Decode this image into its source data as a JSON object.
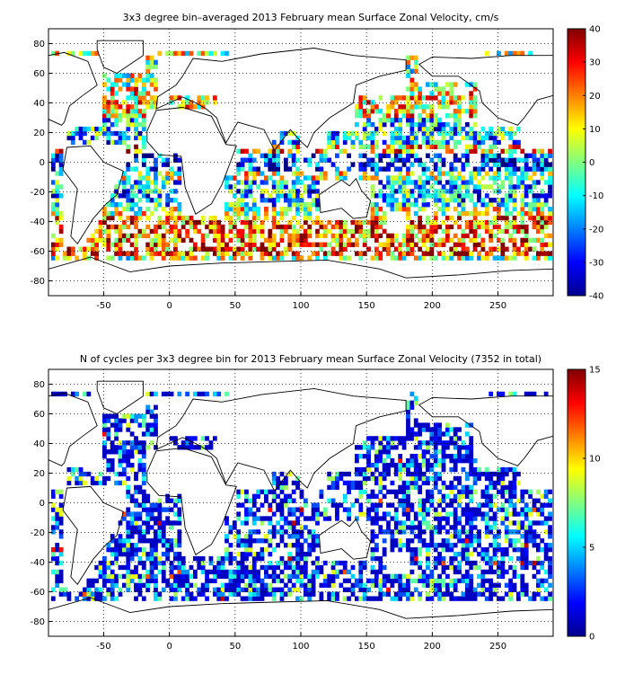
{
  "chart_data": [
    {
      "type": "heatmap",
      "title": "3x3 degree bin–averaged 2013 February mean Surface Zonal Velocity, cm/s",
      "xlabel": "",
      "ylabel": "",
      "xlim": [
        -92,
        292
      ],
      "ylim": [
        -90,
        90
      ],
      "xticks": [
        -50,
        0,
        50,
        100,
        150,
        200,
        250
      ],
      "yticks": [
        -80,
        -60,
        -40,
        -20,
        0,
        20,
        40,
        60,
        80
      ],
      "grid": true,
      "colorbar": {
        "min": -40,
        "max": 40,
        "ticks": [
          -40,
          -30,
          -20,
          -10,
          0,
          10,
          20,
          30,
          40
        ]
      },
      "bin_size_deg": 3
    },
    {
      "type": "heatmap",
      "title": "N of cycles per 3x3 degree bin for 2013 February mean Surface Zonal Velocity (7352 in total)",
      "xlabel": "",
      "ylabel": "",
      "xlim": [
        -92,
        292
      ],
      "ylim": [
        -90,
        90
      ],
      "xticks": [
        -50,
        0,
        50,
        100,
        150,
        200,
        250
      ],
      "yticks": [
        -80,
        -60,
        -40,
        -20,
        0,
        20,
        40,
        60,
        80
      ],
      "grid": true,
      "colorbar": {
        "min": 0,
        "max": 15,
        "ticks": [
          0,
          5,
          10,
          15
        ]
      },
      "bin_size_deg": 3
    }
  ]
}
